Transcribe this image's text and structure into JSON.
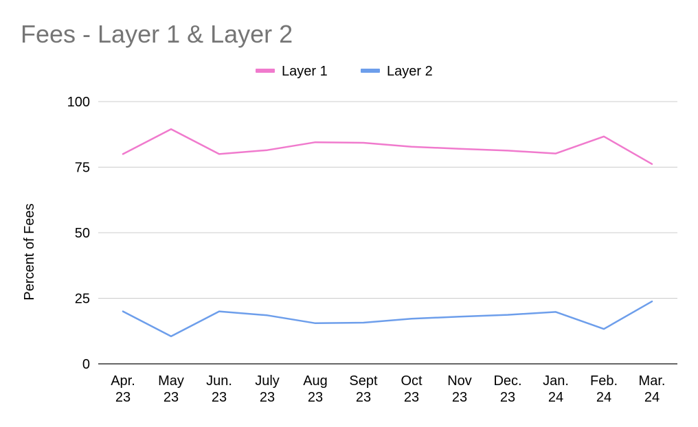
{
  "chart_data": {
    "type": "line",
    "title": "Fees - Layer 1 & Layer 2",
    "ylabel": "Percent of Fees",
    "xlabel": "",
    "ylim": [
      0,
      100
    ],
    "yticks": [
      0,
      25,
      50,
      75,
      100
    ],
    "grid": true,
    "legend_position": "top-center",
    "categories": [
      [
        "Apr.",
        "23"
      ],
      [
        "May",
        "23"
      ],
      [
        "Jun.",
        "23"
      ],
      [
        "July",
        "23"
      ],
      [
        "Aug",
        "23"
      ],
      [
        "Sept",
        "23"
      ],
      [
        "Oct",
        "23"
      ],
      [
        "Nov",
        "23"
      ],
      [
        "Dec.",
        "23"
      ],
      [
        "Jan.",
        "24"
      ],
      [
        "Feb.",
        "24"
      ],
      [
        "Mar.",
        "24"
      ]
    ],
    "series": [
      {
        "name": "Layer 1",
        "color": "#f07acd",
        "values": [
          80,
          89.5,
          80,
          81.5,
          84.5,
          84.3,
          82.8,
          82,
          81.3,
          80.2,
          86.7,
          76.2
        ]
      },
      {
        "name": "Layer 2",
        "color": "#6d9eeb",
        "values": [
          20,
          10.5,
          20,
          18.5,
          15.5,
          15.7,
          17.2,
          18,
          18.7,
          19.8,
          13.3,
          23.8
        ]
      }
    ]
  }
}
